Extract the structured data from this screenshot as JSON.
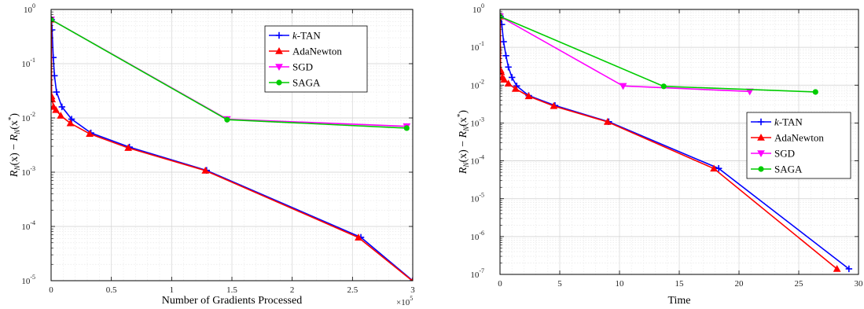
{
  "chart_data": [
    {
      "type": "line",
      "title": "",
      "xlabel": "Number of Gradients Processed",
      "ylabel": "R_N(x) − R_N(x*)",
      "ylabel_parts": {
        "r1": "R",
        "n1": "N",
        "x1": "(x) − ",
        "r2": "R",
        "n2": "N",
        "x2": "(x",
        "star": "*",
        "close": ")"
      },
      "xlim": [
        0,
        3
      ],
      "x_multiplier_label": "×10",
      "x_multiplier_exp": "5",
      "yscale": "log",
      "ylim": [
        1e-05,
        1
      ],
      "grid": true,
      "legend_position": "top-right",
      "x_ticks": [
        "0",
        "0.5",
        "1",
        "1.5",
        "2",
        "2.5",
        "3"
      ],
      "y_ticks": [
        {
          "base": "10",
          "exp": "-5"
        },
        {
          "base": "10",
          "exp": "-4"
        },
        {
          "base": "10",
          "exp": "-3"
        },
        {
          "base": "10",
          "exp": "-2"
        },
        {
          "base": "10",
          "exp": "-1"
        },
        {
          "base": "10",
          "exp": "0"
        }
      ],
      "series": [
        {
          "name": "k-TAN",
          "name_italic": "k",
          "name_rest": "-TAN",
          "color": "#0000ff",
          "marker": "plus",
          "x": [
            0.004,
            0.008,
            0.018,
            0.028,
            0.045,
            0.09,
            0.17,
            0.33,
            0.65,
            1.29,
            2.57,
            3.0
          ],
          "y": [
            0.65,
            0.42,
            0.13,
            0.06,
            0.03,
            0.016,
            0.0095,
            0.0053,
            0.0029,
            0.00108,
            6.3e-05,
            1e-05
          ]
        },
        {
          "name": "AdaNewton",
          "color": "#ff0000",
          "marker": "triangle-up",
          "x": [
            0.002,
            0.004,
            0.008,
            0.02,
            0.04,
            0.08,
            0.16,
            0.32,
            0.64,
            1.28,
            2.55,
            3.0
          ],
          "y": [
            0.65,
            0.025,
            0.022,
            0.016,
            0.014,
            0.011,
            0.008,
            0.0051,
            0.0028,
            0.00107,
            6.25e-05,
            9.8e-06
          ]
        },
        {
          "name": "SGD",
          "color": "#ff00ff",
          "marker": "triangle-down",
          "x": [
            0.0,
            1.46,
            2.95
          ],
          "y": [
            0.65,
            0.0095,
            0.007
          ]
        },
        {
          "name": "SAGA",
          "color": "#00cc00",
          "marker": "circle",
          "x": [
            0.0,
            1.46,
            2.95
          ],
          "y": [
            0.65,
            0.0093,
            0.0065
          ]
        }
      ]
    },
    {
      "type": "line",
      "title": "",
      "xlabel": "Time",
      "ylabel": "R_N(x) − R_N(x*)",
      "ylabel_parts": {
        "r1": "R",
        "n1": "N",
        "x1": "(x) − ",
        "r2": "R",
        "n2": "N",
        "x2": "(x",
        "star": "*",
        "close": ")"
      },
      "xlim": [
        0,
        30
      ],
      "yscale": "log",
      "ylim": [
        1e-07,
        1
      ],
      "grid": true,
      "legend_position": "right",
      "x_ticks": [
        "0",
        "5",
        "10",
        "15",
        "20",
        "25",
        "30"
      ],
      "y_ticks": [
        {
          "base": "10",
          "exp": "-7"
        },
        {
          "base": "10",
          "exp": "-6"
        },
        {
          "base": "10",
          "exp": "-5"
        },
        {
          "base": "10",
          "exp": "-4"
        },
        {
          "base": "10",
          "exp": "-3"
        },
        {
          "base": "10",
          "exp": "-2"
        },
        {
          "base": "10",
          "exp": "-1"
        },
        {
          "base": "10",
          "exp": "0"
        }
      ],
      "series": [
        {
          "name": "k-TAN",
          "name_italic": "k",
          "name_rest": "-TAN",
          "color": "#0000ff",
          "marker": "plus",
          "x": [
            0.05,
            0.15,
            0.3,
            0.5,
            0.7,
            1.0,
            1.4,
            2.4,
            4.6,
            9.1,
            18.3,
            29.2
          ],
          "y": [
            0.65,
            0.4,
            0.14,
            0.06,
            0.03,
            0.016,
            0.0095,
            0.0053,
            0.0029,
            0.00108,
            6.3e-05,
            1.4e-07
          ]
        },
        {
          "name": "AdaNewton",
          "color": "#ff0000",
          "marker": "triangle-up",
          "x": [
            0.02,
            0.05,
            0.1,
            0.2,
            0.35,
            0.7,
            1.3,
            2.4,
            4.5,
            9.0,
            17.9,
            28.2
          ],
          "y": [
            0.65,
            0.025,
            0.022,
            0.016,
            0.014,
            0.011,
            0.008,
            0.0051,
            0.0028,
            0.00107,
            6.25e-05,
            1.4e-07
          ]
        },
        {
          "name": "SGD",
          "color": "#ff00ff",
          "marker": "triangle-down",
          "x": [
            0.0,
            10.3,
            20.9
          ],
          "y": [
            0.65,
            0.0095,
            0.0068
          ]
        },
        {
          "name": "SAGA",
          "color": "#00cc00",
          "marker": "circle",
          "x": [
            0.0,
            13.7,
            26.4
          ],
          "y": [
            0.65,
            0.0093,
            0.0066
          ]
        }
      ]
    }
  ]
}
